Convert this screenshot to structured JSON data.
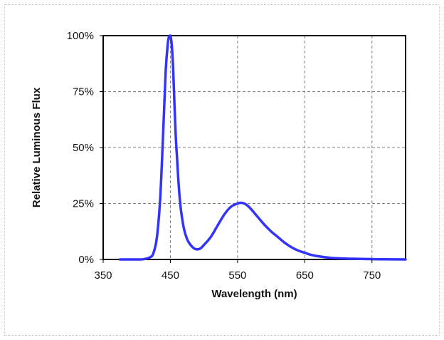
{
  "chart_data": {
    "type": "line",
    "title": "",
    "xlabel": "Wavelength (nm)",
    "ylabel": "Relative Luminous Flux",
    "xlim": [
      350,
      800
    ],
    "ylim": [
      0,
      100
    ],
    "x_ticks": [
      350,
      450,
      550,
      650,
      750
    ],
    "y_ticks": [
      0,
      25,
      50,
      75,
      100
    ],
    "x_tick_labels": [
      "350",
      "450",
      "550",
      "650",
      "750"
    ],
    "y_tick_labels": [
      "0%",
      "25%",
      "50%",
      "75%",
      "100%"
    ],
    "grid": true,
    "legend": "none",
    "series": [
      {
        "color": "#3333ff",
        "x": [
          375,
          400,
          410,
          420,
          425,
          430,
          435,
          440,
          443,
          446,
          448,
          450,
          452,
          454,
          456,
          458,
          460,
          462,
          465,
          470,
          475,
          480,
          485,
          490,
          495,
          500,
          510,
          520,
          530,
          540,
          550,
          555,
          560,
          565,
          570,
          580,
          590,
          600,
          610,
          620,
          630,
          640,
          650,
          660,
          680,
          700,
          720,
          740,
          760,
          780,
          800
        ],
        "y": [
          0,
          0,
          0.1,
          1,
          3,
          10,
          28,
          62,
          84,
          96,
          99.5,
          100,
          96,
          86,
          70,
          55,
          45,
          35,
          24,
          14,
          9,
          6.5,
          5,
          4.5,
          5,
          6.5,
          10,
          15,
          20,
          23.5,
          25,
          25.3,
          25,
          24,
          22.5,
          19,
          15.5,
          12.5,
          10,
          7.5,
          5.5,
          4,
          3,
          2,
          1,
          0.5,
          0.3,
          0.2,
          0.1,
          0.05,
          0
        ]
      }
    ]
  }
}
